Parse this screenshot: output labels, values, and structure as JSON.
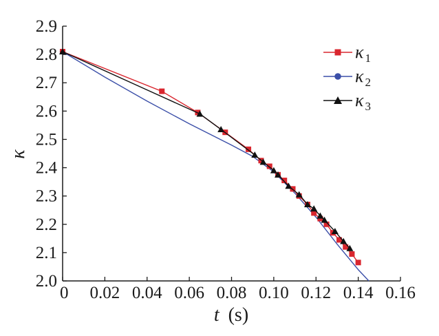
{
  "chart_data": {
    "type": "line",
    "title": "",
    "xlabel": "t",
    "xunit": "(s)",
    "ylabel": "κ",
    "xlim": [
      0,
      0.16
    ],
    "ylim": [
      2.0,
      2.9
    ],
    "xticks": [
      0,
      0.02,
      0.04,
      0.06,
      0.08,
      0.1,
      0.12,
      0.14,
      0.16
    ],
    "xtick_labels": [
      "0",
      "0.02",
      "0.04",
      "0.06",
      "0.08",
      "0.10",
      "0.12",
      "0.14",
      "0.16"
    ],
    "yticks": [
      2.0,
      2.1,
      2.2,
      2.3,
      2.4,
      2.5,
      2.6,
      2.7,
      2.8,
      2.9
    ],
    "ytick_labels": [
      "2.0",
      "2.1",
      "2.2",
      "2.3",
      "2.4",
      "2.5",
      "2.6",
      "2.7",
      "2.8",
      "2.9"
    ],
    "grid": false,
    "legend_position": "top-right",
    "series": [
      {
        "name": "κ",
        "subscript": "1",
        "color": "#d9262e",
        "marker": "square",
        "x": [
          0,
          0.047,
          0.064,
          0.077,
          0.088,
          0.094,
          0.098,
          0.102,
          0.105,
          0.109,
          0.112,
          0.116,
          0.119,
          0.122,
          0.125,
          0.128,
          0.131,
          0.134,
          0.137,
          0.14
        ],
        "y": [
          2.81,
          2.67,
          2.595,
          2.525,
          2.465,
          2.425,
          2.405,
          2.375,
          2.355,
          2.325,
          2.3,
          2.27,
          2.24,
          2.22,
          2.2,
          2.17,
          2.145,
          2.12,
          2.095,
          2.065
        ]
      },
      {
        "name": "κ",
        "subscript": "2",
        "color": "#3b4fa8",
        "marker": "circle",
        "x": [
          0,
          0.02,
          0.04,
          0.06,
          0.08,
          0.09,
          0.1,
          0.11,
          0.12,
          0.13,
          0.14,
          0.145
        ],
        "y": [
          2.81,
          2.72,
          2.635,
          2.555,
          2.48,
          2.44,
          2.385,
          2.31,
          2.225,
          2.13,
          2.04,
          2.0
        ]
      },
      {
        "name": "κ",
        "subscript": "3",
        "color": "#111111",
        "marker": "triangle",
        "x": [
          0,
          0.065,
          0.075,
          0.091,
          0.095,
          0.1,
          0.102,
          0.107,
          0.112,
          0.116,
          0.119,
          0.122,
          0.124,
          0.129,
          0.133,
          0.136
        ],
        "y": [
          2.81,
          2.59,
          2.535,
          2.445,
          2.42,
          2.39,
          2.375,
          2.335,
          2.305,
          2.27,
          2.255,
          2.23,
          2.215,
          2.175,
          2.14,
          2.115
        ]
      }
    ]
  }
}
